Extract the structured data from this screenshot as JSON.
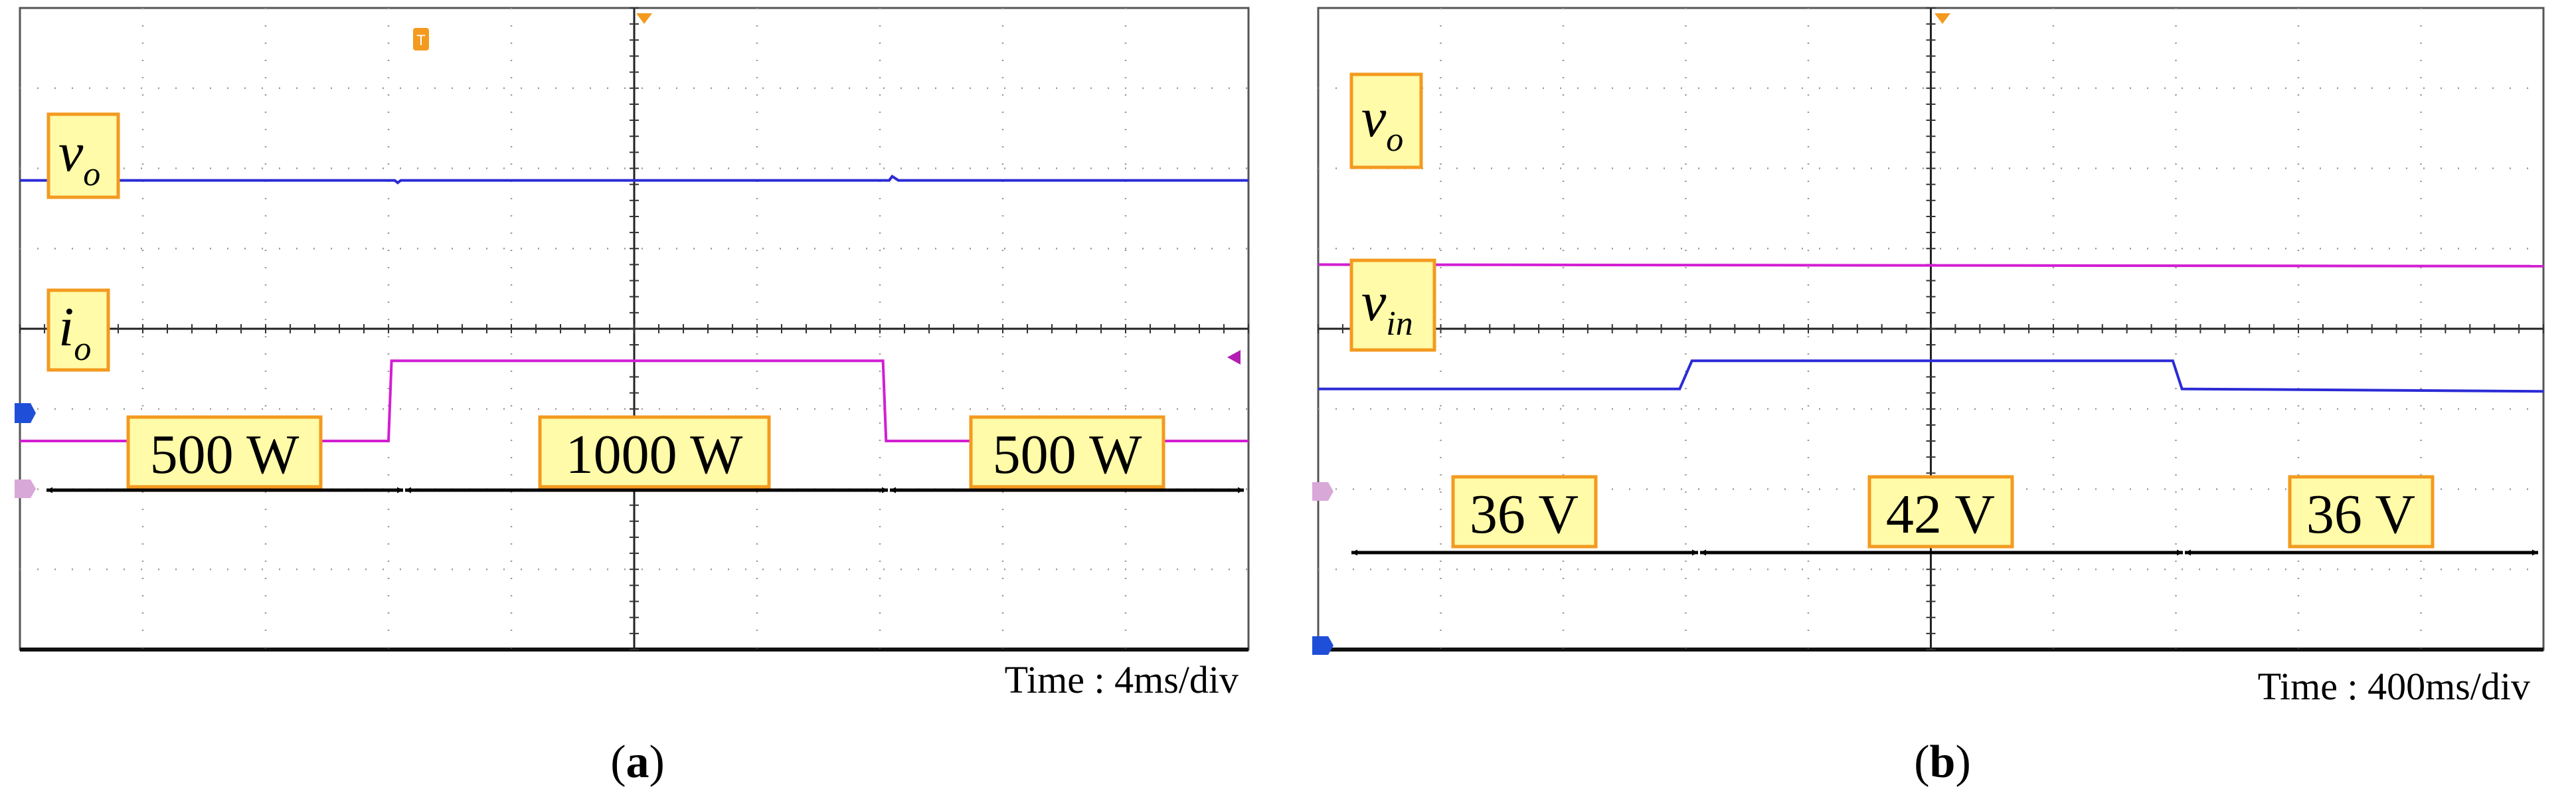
{
  "chart_data": [
    {
      "type": "line",
      "panel": "(a)",
      "caption_letter": "a",
      "time_base": "Time : 4ms/div",
      "x_divisions": 10,
      "y_divisions": 8,
      "series": [
        {
          "name": "v_o",
          "label": "v",
          "subscript": "o",
          "color": "#2b2bd6",
          "x_div": [
            0,
            6.1,
            6.15,
            6.2,
            14.15,
            14.2,
            14.3,
            20
          ],
          "y_div": [
            5.85,
            5.85,
            5.82,
            5.85,
            5.85,
            5.9,
            5.85,
            5.85
          ]
        },
        {
          "name": "i_o",
          "label": "i",
          "subscript": "o",
          "color": "#d21ed2",
          "x_div": [
            0,
            6.0,
            6.05,
            14.05,
            14.1,
            20
          ],
          "y_div": [
            2.6,
            2.6,
            3.6,
            3.6,
            2.6,
            2.6
          ]
        }
      ],
      "segments": [
        {
          "label": "500 W",
          "from_div": 0,
          "to_div": 6
        },
        {
          "label": "1000 W",
          "from_div": 6,
          "to_div": 14.1
        },
        {
          "label": "500 W",
          "from_div": 14.1,
          "to_div": 20
        }
      ]
    },
    {
      "type": "line",
      "panel": "(b)",
      "caption_letter": "b",
      "time_base": "Time : 400ms/div",
      "x_divisions": 10,
      "y_divisions": 8,
      "series": [
        {
          "name": "v_o",
          "label": "v",
          "subscript": "o",
          "color": "#d21ed2",
          "x_div": [
            0,
            20
          ],
          "y_div": [
            4.8,
            4.78
          ]
        },
        {
          "name": "v_in",
          "label": "v",
          "subscript": "in",
          "color": "#2b2bd6",
          "x_div": [
            0,
            5.9,
            6.1,
            13.95,
            14.1,
            20
          ],
          "y_div": [
            3.25,
            3.25,
            3.6,
            3.6,
            3.25,
            3.22
          ]
        }
      ],
      "segments": [
        {
          "label": "36 V",
          "from_div": 0,
          "to_div": 5.95
        },
        {
          "label": "42 V",
          "from_div": 5.95,
          "to_div": 14.05
        },
        {
          "label": "36 V",
          "from_div": 14.05,
          "to_div": 20
        }
      ]
    }
  ]
}
